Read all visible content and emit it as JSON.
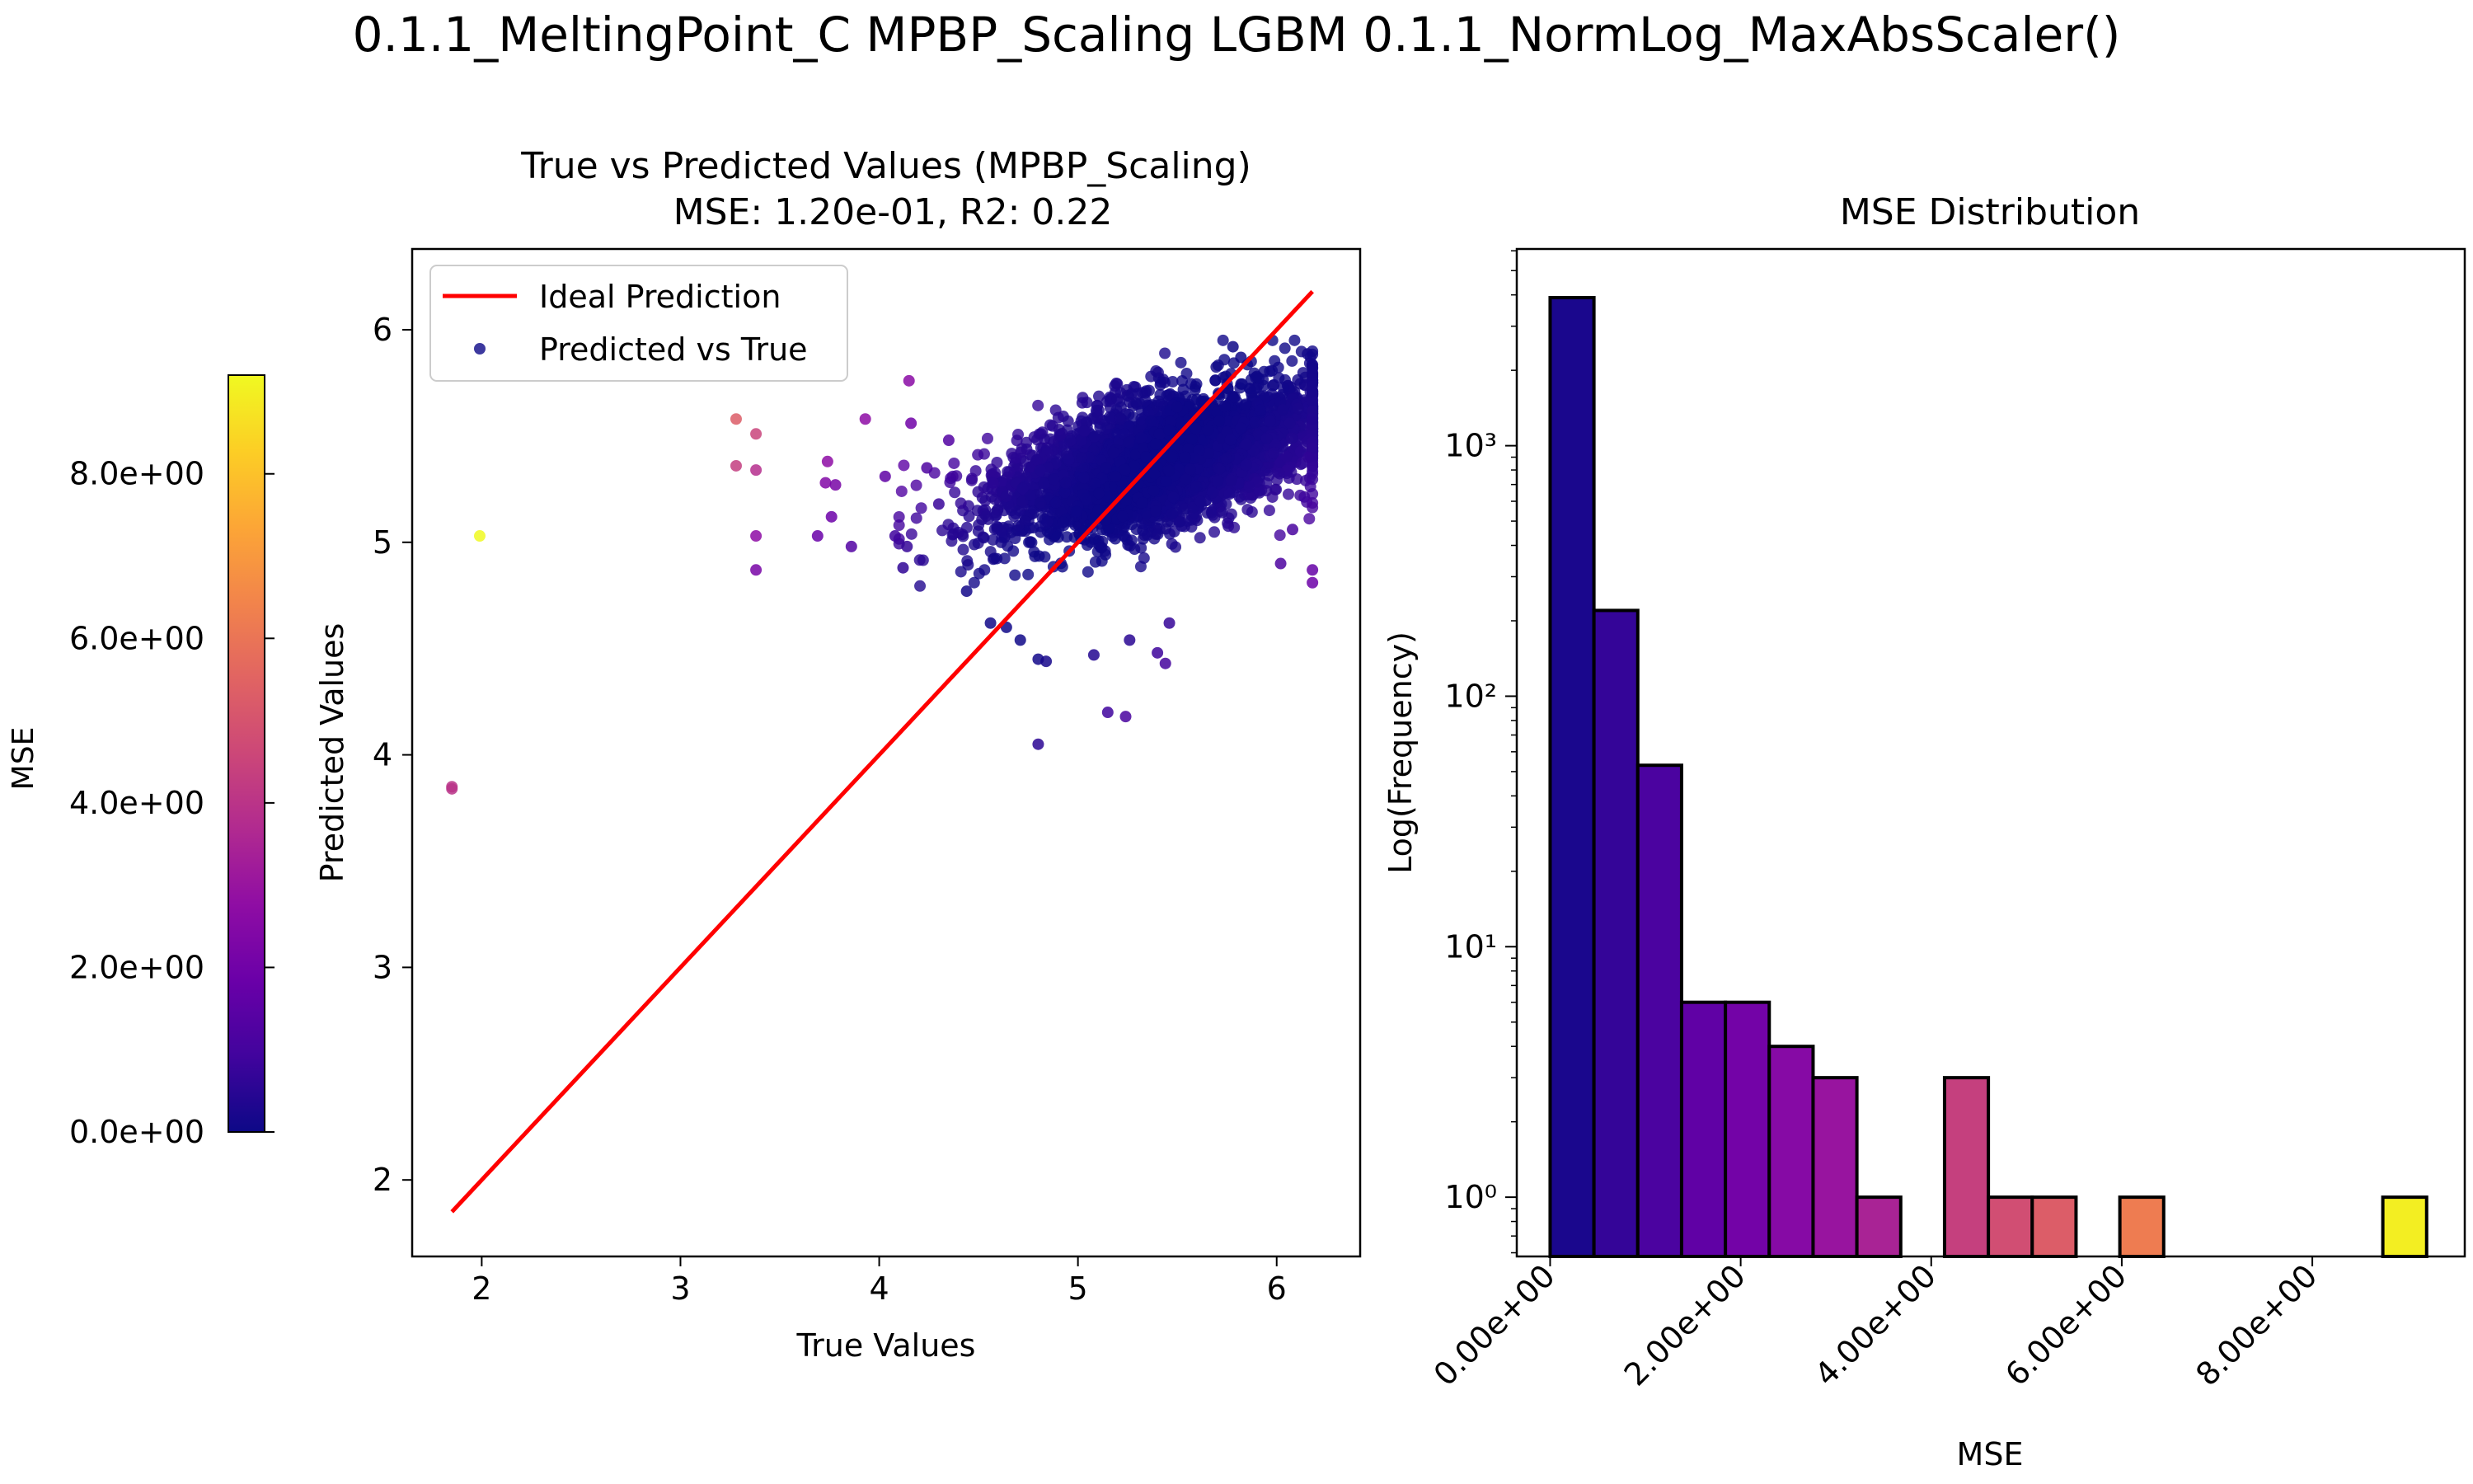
{
  "suptitle": "0.1.1_MeltingPoint_C MPBP_Scaling LGBM 0.1.1_NormLog_MaxAbsScaler()",
  "colors": {
    "ideal_line": "#ff0000",
    "colormap": [
      "#0d0887",
      "#41049d",
      "#6a00a8",
      "#8f0da4",
      "#b12a90",
      "#cc4778",
      "#e16462",
      "#f2844b",
      "#fca636",
      "#fcce25",
      "#f0f921"
    ]
  },
  "chart_data": [
    {
      "type": "scatter",
      "title": "True vs Predicted Values (MPBP_Scaling)",
      "subtitle": "MSE: 1.20e-01, R2: 0.22",
      "xlabel": "True Values",
      "ylabel": "Predicted Values",
      "xlim": [
        1.65,
        6.42
      ],
      "ylim": [
        1.64,
        6.38
      ],
      "xticks": [
        2,
        3,
        4,
        5,
        6
      ],
      "yticks": [
        2,
        3,
        4,
        5,
        6
      ],
      "legend": {
        "placement": "top-left",
        "entries": [
          "Ideal Prediction",
          "Predicted vs True"
        ]
      },
      "ideal_line": {
        "x": [
          1.85,
          6.18
        ],
        "y": [
          1.85,
          6.18
        ]
      },
      "points": [
        {
          "x": 1.99,
          "y": 5.03,
          "mse": 9.2
        },
        {
          "x": 1.85,
          "y": 3.85,
          "mse": 4.0
        },
        {
          "x": 1.85,
          "y": 3.84,
          "mse": 4.0
        },
        {
          "x": 3.28,
          "y": 5.58,
          "mse": 5.3
        },
        {
          "x": 3.28,
          "y": 5.36,
          "mse": 4.3
        },
        {
          "x": 3.38,
          "y": 5.51,
          "mse": 4.5
        },
        {
          "x": 3.38,
          "y": 5.34,
          "mse": 3.8
        },
        {
          "x": 3.38,
          "y": 5.03,
          "mse": 2.7
        },
        {
          "x": 3.38,
          "y": 4.87,
          "mse": 2.2
        },
        {
          "x": 3.69,
          "y": 5.03,
          "mse": 1.8
        },
        {
          "x": 3.73,
          "y": 5.28,
          "mse": 2.4
        },
        {
          "x": 3.74,
          "y": 5.38,
          "mse": 2.7
        },
        {
          "x": 3.76,
          "y": 5.12,
          "mse": 1.9
        },
        {
          "x": 3.78,
          "y": 5.27,
          "mse": 2.2
        },
        {
          "x": 3.86,
          "y": 4.98,
          "mse": 1.3
        },
        {
          "x": 3.93,
          "y": 5.58,
          "mse": 2.7
        },
        {
          "x": 4.03,
          "y": 5.31,
          "mse": 1.6
        },
        {
          "x": 4.08,
          "y": 5.03,
          "mse": 0.9
        },
        {
          "x": 4.12,
          "y": 4.88,
          "mse": 0.6
        },
        {
          "x": 4.15,
          "y": 5.76,
          "mse": 2.6
        },
        {
          "x": 4.16,
          "y": 5.56,
          "mse": 2.0
        },
        {
          "x": 4.14,
          "y": 4.98,
          "mse": 0.7
        },
        {
          "x": 4.24,
          "y": 5.35,
          "mse": 1.2
        },
        {
          "x": 4.3,
          "y": 5.18,
          "mse": 0.8
        },
        {
          "x": 4.35,
          "y": 5.48,
          "mse": 1.3
        },
        {
          "x": 4.44,
          "y": 4.77,
          "mse": 0.1
        },
        {
          "x": 4.56,
          "y": 4.62,
          "mse": 0.05
        },
        {
          "x": 4.64,
          "y": 4.6,
          "mse": 0.05
        },
        {
          "x": 4.71,
          "y": 4.54,
          "mse": 0.04
        },
        {
          "x": 4.8,
          "y": 4.45,
          "mse": 0.1
        },
        {
          "x": 4.8,
          "y": 4.05,
          "mse": 0.55
        },
        {
          "x": 4.84,
          "y": 4.44,
          "mse": 0.16
        },
        {
          "x": 5.08,
          "y": 4.47,
          "mse": 0.37
        },
        {
          "x": 5.15,
          "y": 4.2,
          "mse": 0.9
        },
        {
          "x": 5.24,
          "y": 4.18,
          "mse": 1.1
        },
        {
          "x": 5.26,
          "y": 4.54,
          "mse": 0.5
        },
        {
          "x": 5.4,
          "y": 4.48,
          "mse": 0.85
        },
        {
          "x": 5.44,
          "y": 4.43,
          "mse": 1.0
        },
        {
          "x": 5.46,
          "y": 4.62,
          "mse": 0.7
        },
        {
          "x": 5.78,
          "y": 5.92,
          "mse": 0.02
        },
        {
          "x": 5.82,
          "y": 5.87,
          "mse": 0.01
        },
        {
          "x": 5.9,
          "y": 5.78,
          "mse": 0.01
        },
        {
          "x": 6.02,
          "y": 4.9,
          "mse": 1.2
        },
        {
          "x": 6.08,
          "y": 5.06,
          "mse": 1.1
        },
        {
          "x": 6.18,
          "y": 4.87,
          "mse": 1.7
        },
        {
          "x": 6.18,
          "y": 4.81,
          "mse": 1.9
        },
        {
          "x": 6.18,
          "y": 5.58,
          "mse": 0.36
        },
        {
          "x": 6.16,
          "y": 5.4,
          "mse": 0.6
        }
      ],
      "cloud": {
        "count": 3600,
        "x_mean": 5.42,
        "x_sd": 0.42,
        "x_min": 4.1,
        "x_max": 6.18,
        "y_base": 5.38,
        "y_slope": 0.22,
        "y_sd": 0.15,
        "y_min": 4.72,
        "y_max": 5.95
      }
    },
    {
      "type": "bar",
      "title": "MSE Distribution",
      "xlabel": "MSE",
      "ylabel": "Log(Frequency)",
      "yscale": "log",
      "xlim": [
        -0.35,
        9.6
      ],
      "ylim": [
        0.58,
        6100
      ],
      "xticks": [
        0,
        2,
        4,
        6,
        8
      ],
      "xtick_labels": [
        "0.00e+00",
        "2.00e+00",
        "4.00e+00",
        "6.00e+00",
        "8.00e+00"
      ],
      "ytick_labels": [
        "10⁰",
        "10¹",
        "10²",
        "10³"
      ],
      "bin_width": 0.46,
      "bin_starts": [
        0.0,
        0.46,
        0.92,
        1.38,
        1.84,
        2.3,
        2.76,
        3.22,
        3.68,
        4.14,
        4.6,
        5.06,
        5.52,
        5.98,
        6.44,
        6.9,
        7.36,
        7.82,
        8.28,
        8.74
      ],
      "counts": [
        3900,
        220,
        53,
        6,
        6,
        4,
        3,
        1,
        0,
        3,
        1,
        1,
        0,
        1,
        0,
        0,
        0,
        0,
        0,
        1
      ]
    },
    {
      "type": "colorbar",
      "label": "MSE",
      "range": [
        0,
        9.2
      ],
      "ticks": [
        0,
        2,
        4,
        6,
        8
      ],
      "tick_labels": [
        "0.0e+00",
        "2.0e+00",
        "4.0e+00",
        "6.0e+00",
        "8.0e+00"
      ]
    }
  ]
}
